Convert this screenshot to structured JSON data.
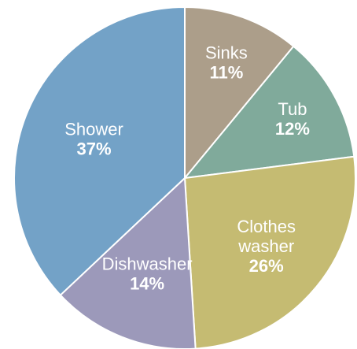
{
  "chart_data": {
    "type": "pie",
    "title": "",
    "slices": [
      {
        "name": "Sinks",
        "label_lines": [
          "Sinks"
        ],
        "value": 11,
        "value_label": "11%",
        "color": "#ac9e8a"
      },
      {
        "name": "Tub",
        "label_lines": [
          "Tub"
        ],
        "value": 12,
        "value_label": "12%",
        "color": "#80aa9b"
      },
      {
        "name": "Clothes washer",
        "label_lines": [
          "Clothes",
          "washer"
        ],
        "value": 26,
        "value_label": "26%",
        "color": "#c5bb72"
      },
      {
        "name": "Dishwasher",
        "label_lines": [
          "Dishwasher"
        ],
        "value": 14,
        "value_label": "14%",
        "color": "#9c99ba"
      },
      {
        "name": "Shower",
        "label_lines": [
          "Shower"
        ],
        "value": 37,
        "value_label": "37%",
        "color": "#73a2c7"
      }
    ],
    "start_angle_deg": 0,
    "direction": "clockwise",
    "legend": "none"
  }
}
